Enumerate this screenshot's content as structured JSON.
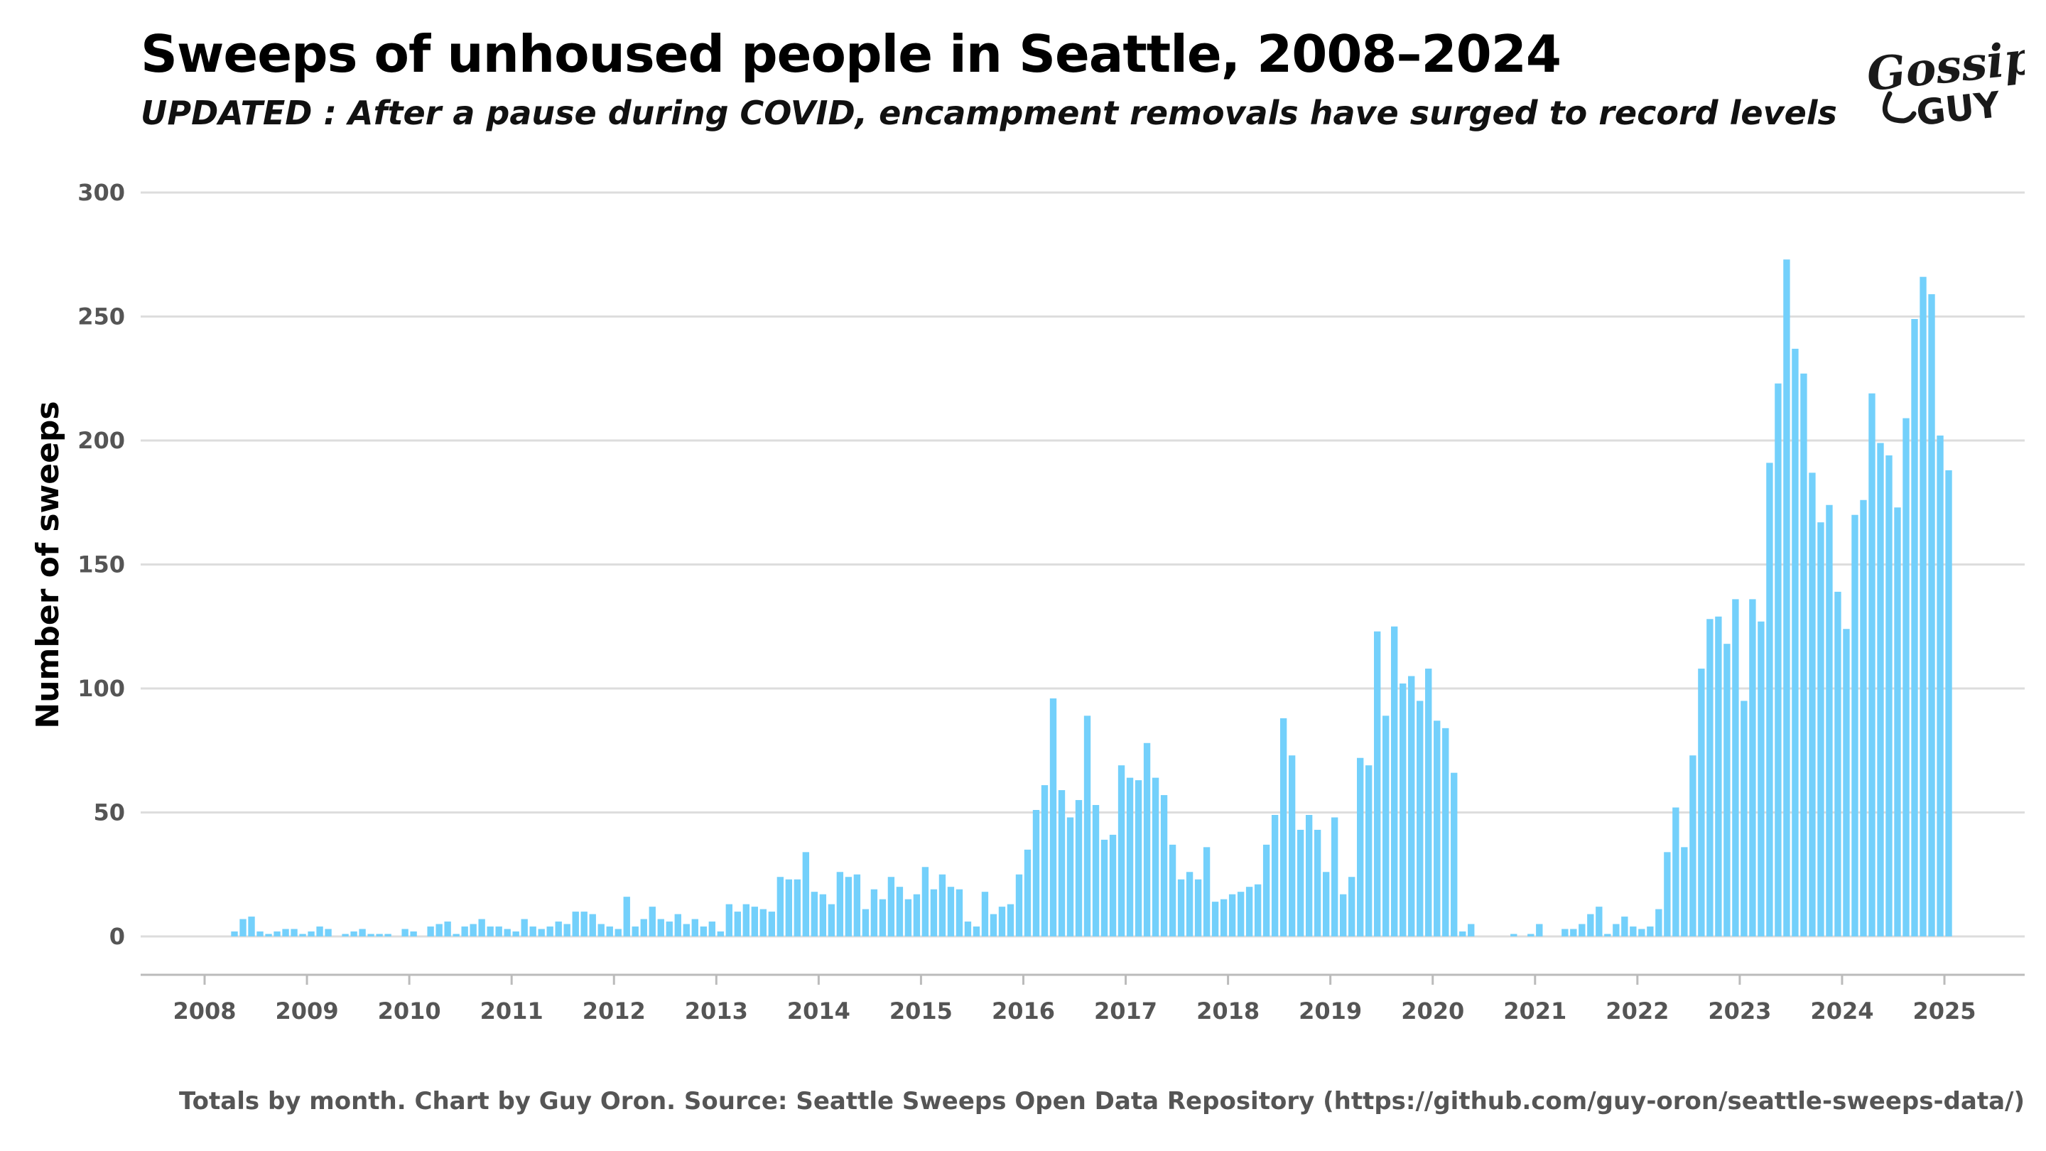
{
  "header": {
    "title": "Sweeps of unhoused people in Seattle, 2008–2024",
    "subtitle": "UPDATED : After a pause during COVID, encampment removals have surged to record levels"
  },
  "logo": {
    "line1": "Gossip",
    "line2": "GUY",
    "color": "#1a1a1a"
  },
  "caption": "Totals by month. Chart by Guy Oron. Source: Seattle Sweeps Open Data Repository (https://github.com/guy-oron/seattle-sweeps-data/)",
  "colors": {
    "bar": "#73d0fb",
    "grid": "#dddddd",
    "axis": "#bbbbbb"
  },
  "chart_data": {
    "type": "bar",
    "ylabel": "Number of sweeps",
    "ylim": [
      -15,
      300
    ],
    "yticks": [
      0,
      50,
      100,
      150,
      200,
      250,
      300
    ],
    "xticks": [
      "2008",
      "2009",
      "2010",
      "2011",
      "2012",
      "2013",
      "2014",
      "2015",
      "2016",
      "2017",
      "2018",
      "2019",
      "2020",
      "2021",
      "2022",
      "2023",
      "2024",
      "2025"
    ],
    "start": "2008-01",
    "grid": true,
    "values": [
      0,
      0,
      0,
      2,
      7,
      8,
      2,
      1,
      2,
      3,
      3,
      1,
      2,
      4,
      3,
      0,
      1,
      2,
      3,
      1,
      1,
      1,
      0,
      3,
      2,
      0,
      4,
      5,
      6,
      1,
      4,
      5,
      7,
      4,
      4,
      3,
      2,
      7,
      4,
      3,
      4,
      6,
      5,
      10,
      10,
      9,
      5,
      4,
      3,
      16,
      4,
      7,
      12,
      7,
      6,
      9,
      5,
      7,
      4,
      6,
      2,
      13,
      10,
      13,
      12,
      11,
      10,
      24,
      23,
      23,
      34,
      18,
      17,
      13,
      26,
      24,
      25,
      11,
      19,
      15,
      24,
      20,
      15,
      17,
      28,
      19,
      25,
      20,
      19,
      6,
      4,
      18,
      9,
      12,
      13,
      25,
      35,
      51,
      61,
      96,
      59,
      48,
      55,
      89,
      53,
      39,
      41,
      69,
      64,
      63,
      78,
      64,
      57,
      37,
      23,
      26,
      23,
      36,
      14,
      15,
      17,
      18,
      20,
      21,
      37,
      49,
      88,
      73,
      43,
      49,
      43,
      26,
      48,
      17,
      24,
      72,
      69,
      123,
      89,
      125,
      102,
      105,
      95,
      108,
      87,
      84,
      66,
      2,
      5,
      0,
      0,
      0,
      0,
      1,
      0,
      1,
      5,
      0,
      0,
      3,
      3,
      5,
      9,
      12,
      1,
      5,
      8,
      4,
      3,
      4,
      11,
      34,
      52,
      36,
      73,
      108,
      128,
      129,
      118,
      136,
      95,
      136,
      127,
      191,
      223,
      273,
      237,
      227,
      187,
      167,
      174,
      139,
      124,
      170,
      176,
      219,
      199,
      194,
      173,
      209,
      249,
      266,
      259,
      202,
      188
    ]
  }
}
